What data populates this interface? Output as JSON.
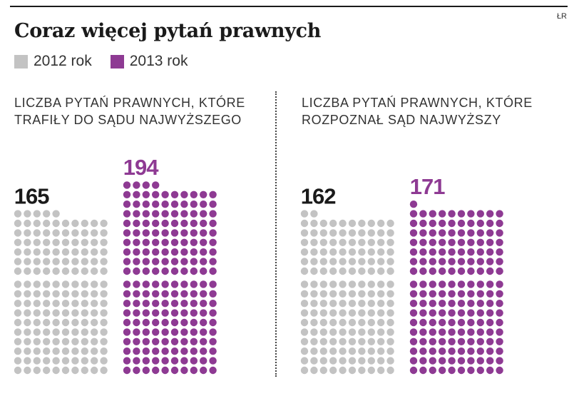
{
  "title": "Coraz więcej pytań prawnych",
  "credit": "ŁR",
  "legend": [
    {
      "label": "2012 rok",
      "color": "#c3c3c3"
    },
    {
      "label": "2013 rok",
      "color": "#8e3a93"
    }
  ],
  "chart_data": [
    {
      "type": "bar",
      "title": "LICZBA PYTAŃ PRAWNYCH, KTÓRE TRAFIŁY DO SĄDU NAJWYŻSZEGO",
      "title_lines": [
        "LICZBA PYTAŃ PRAWNYCH, KTÓRE",
        "TRAFIŁY DO SĄDU NAJWYŻSZEGO"
      ],
      "categories": [
        "2012 rok",
        "2013 rok"
      ],
      "values": [
        165,
        194
      ],
      "colors": [
        "#c3c3c3",
        "#8e3a93"
      ],
      "label_colors": [
        "#1a1a1a",
        "#8e3a93"
      ],
      "unit_per_dot": 1
    },
    {
      "type": "bar",
      "title": "LICZBA PYTAŃ PRAWNYCH, KTÓRE ROZPOZNAŁ SĄD NAJWYŻSZY",
      "title_lines": [
        "LICZBA PYTAŃ PRAWNYCH, KTÓRE",
        "ROZPOZNAŁ SĄD NAJWYŻSZY"
      ],
      "categories": [
        "2012 rok",
        "2013 rok"
      ],
      "values": [
        162,
        171
      ],
      "colors": [
        "#c3c3c3",
        "#8e3a93"
      ],
      "label_colors": [
        "#1a1a1a",
        "#8e3a93"
      ],
      "unit_per_dot": 1
    }
  ]
}
